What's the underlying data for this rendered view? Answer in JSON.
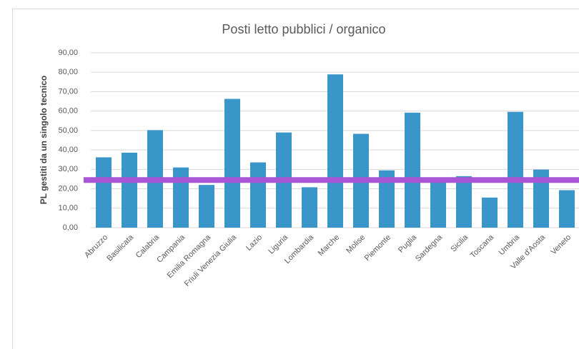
{
  "chart_data": {
    "type": "bar",
    "title": "Posti letto pubblici / organico",
    "y_axis_label": "PL gestiti da un singolo tecnico",
    "categories": [
      "Abruzzo",
      "Basilicata",
      "Calabria",
      "Campania",
      "Emilia Romagna",
      "Friuli Venezia Giulia",
      "Lazio",
      "Liguria",
      "Lombardia",
      "Marche",
      "Molise",
      "Piemonte",
      "Puglia",
      "Sardegna",
      "Sicilia",
      "Toscana",
      "Umbria",
      "Valle d'Aosta",
      "Veneto"
    ],
    "values": [
      36.2,
      38.6,
      50.2,
      31.0,
      22.0,
      66.3,
      33.6,
      49.0,
      20.8,
      78.9,
      48.3,
      29.5,
      59.2,
      24.0,
      26.5,
      15.5,
      59.6,
      29.9,
      19.3
    ],
    "color": "#3a96c9",
    "reference_line": {
      "value": 24.5,
      "color": "#a855d6"
    },
    "ylim": [
      0,
      90
    ],
    "yticks": [
      {
        "value": 0,
        "label": "0,00"
      },
      {
        "value": 10,
        "label": "10,00"
      },
      {
        "value": 20,
        "label": "20,00"
      },
      {
        "value": 30,
        "label": "30,00"
      },
      {
        "value": 40,
        "label": "40,00"
      },
      {
        "value": 50,
        "label": "50,00"
      },
      {
        "value": 60,
        "label": "60,00"
      },
      {
        "value": 70,
        "label": "70,00"
      },
      {
        "value": 80,
        "label": "80,00"
      },
      {
        "value": 90,
        "label": "90,00"
      }
    ],
    "grid": true
  }
}
